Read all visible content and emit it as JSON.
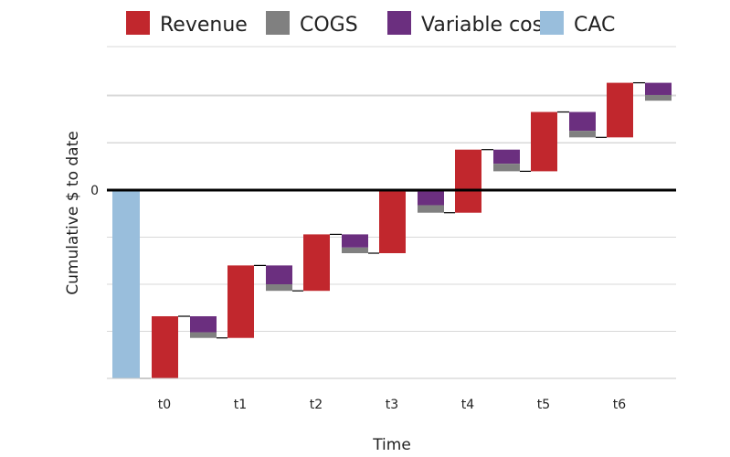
{
  "chart_data": {
    "type": "waterfall",
    "xlabel": "Time",
    "ylabel": "Cumulative $ to date",
    "ylim": [
      -200,
      120
    ],
    "y_tick_labels": [
      {
        "value": 0,
        "label": "0"
      }
    ],
    "categories": [
      "t0",
      "t1",
      "t2",
      "t3",
      "t4",
      "t5",
      "t6"
    ],
    "legend": {
      "position": "top",
      "entries": [
        {
          "name": "Revenue",
          "color": "#c1272d"
        },
        {
          "name": "COGS",
          "color": "#808080"
        },
        {
          "name": "Variable costs",
          "color": "#6b2f7f"
        },
        {
          "name": "CAC",
          "color": "#99bedc"
        }
      ]
    },
    "grid": true,
    "cac": {
      "from": 0,
      "to": -200
    },
    "steps": [
      {
        "category": "t0",
        "revenue": 66,
        "cogs": -6,
        "variable_costs": -17
      },
      {
        "category": "t1",
        "revenue": 77,
        "cogs": -7,
        "variable_costs": -20
      },
      {
        "category": "t2",
        "revenue": 60,
        "cogs": -6,
        "variable_costs": -14
      },
      {
        "category": "t3",
        "revenue": 66,
        "cogs": -8,
        "variable_costs": -15
      },
      {
        "category": "t4",
        "revenue": 67,
        "cogs": -8,
        "variable_costs": -15
      },
      {
        "category": "t5",
        "revenue": 63,
        "cogs": -7,
        "variable_costs": -20
      },
      {
        "category": "t6",
        "revenue": 58,
        "cogs": -6,
        "variable_costs": -13
      }
    ]
  }
}
